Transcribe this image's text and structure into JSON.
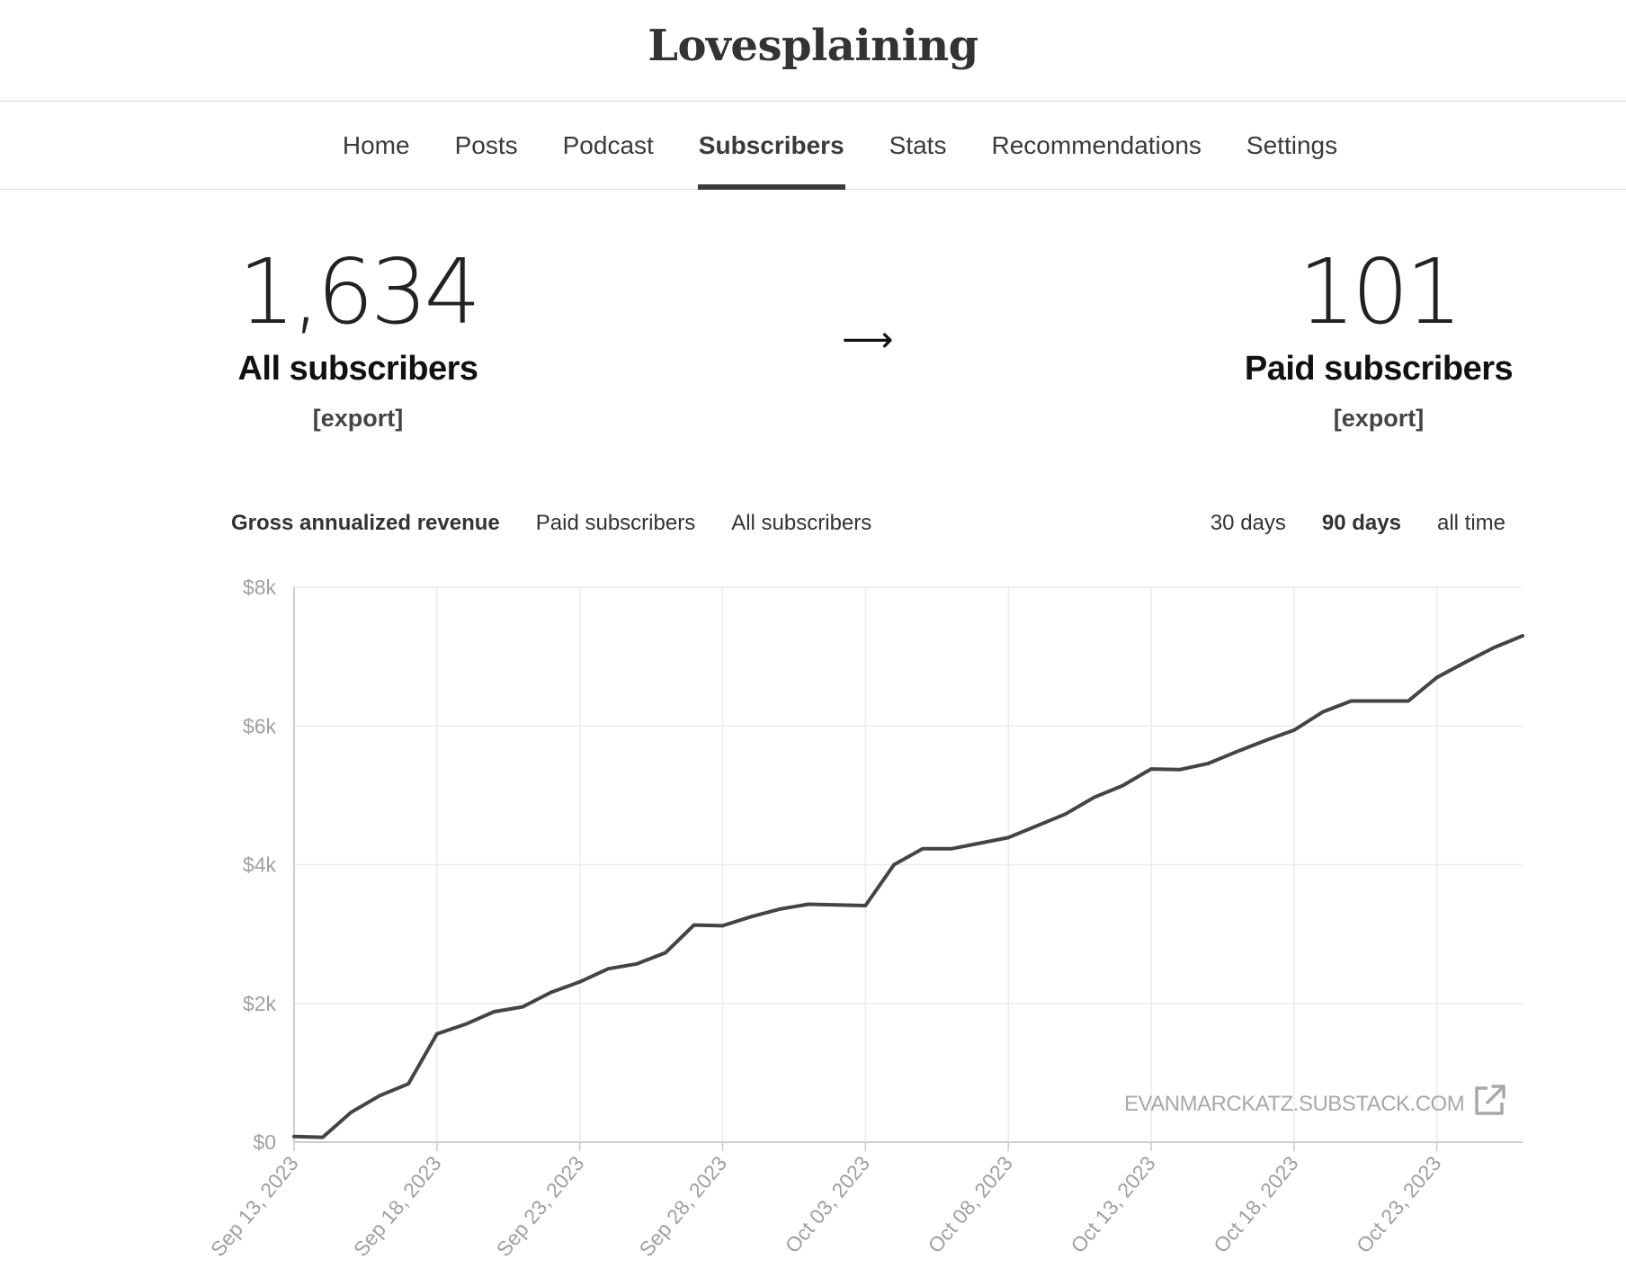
{
  "publication": {
    "title": "Lovesplaining"
  },
  "nav": {
    "tabs": [
      {
        "label": "Home",
        "active": false
      },
      {
        "label": "Posts",
        "active": false
      },
      {
        "label": "Podcast",
        "active": false
      },
      {
        "label": "Subscribers",
        "active": true
      },
      {
        "label": "Stats",
        "active": false
      },
      {
        "label": "Recommendations",
        "active": false
      },
      {
        "label": "Settings",
        "active": false
      }
    ]
  },
  "summary": {
    "all": {
      "count": "1,634",
      "label": "All subscribers",
      "export": "[export]"
    },
    "arrow": "⟶",
    "paid": {
      "count": "101",
      "label": "Paid subscribers",
      "export": "[export]"
    }
  },
  "chart_tabs": [
    {
      "label": "Gross annualized revenue",
      "active": true
    },
    {
      "label": "Paid subscribers",
      "active": false
    },
    {
      "label": "All subscribers",
      "active": false
    }
  ],
  "range_tabs": [
    {
      "label": "30 days",
      "active": false
    },
    {
      "label": "90 days",
      "active": true
    },
    {
      "label": "all time",
      "active": false
    }
  ],
  "watermark": {
    "text": "EVANMARCKATZ.SUBSTACK.COM",
    "icon": "external-link-icon"
  },
  "colors": {
    "line": "#444444",
    "grid": "#ebebeb",
    "axis_text": "#a0a0a0"
  },
  "chart_data": {
    "type": "line",
    "title": "",
    "xlabel": "",
    "ylabel": "",
    "ylim": [
      0,
      8000
    ],
    "yticks": [
      {
        "value": 0,
        "label": "$0"
      },
      {
        "value": 2000,
        "label": "$2k"
      },
      {
        "value": 4000,
        "label": "$4k"
      },
      {
        "value": 6000,
        "label": "$6k"
      },
      {
        "value": 8000,
        "label": "$8k"
      }
    ],
    "xticks": [
      "Sep 13, 2023",
      "Sep 18, 2023",
      "Sep 23, 2023",
      "Sep 28, 2023",
      "Oct 03, 2023",
      "Oct 08, 2023",
      "Oct 13, 2023",
      "Oct 18, 2023",
      "Oct 23, 2023"
    ],
    "x": [
      "2023-09-13",
      "2023-09-14",
      "2023-09-15",
      "2023-09-16",
      "2023-09-17",
      "2023-09-18",
      "2023-09-19",
      "2023-09-20",
      "2023-09-21",
      "2023-09-22",
      "2023-09-23",
      "2023-09-24",
      "2023-09-25",
      "2023-09-26",
      "2023-09-27",
      "2023-09-28",
      "2023-09-29",
      "2023-09-30",
      "2023-10-01",
      "2023-10-02",
      "2023-10-03",
      "2023-10-04",
      "2023-10-05",
      "2023-10-06",
      "2023-10-07",
      "2023-10-08",
      "2023-10-09",
      "2023-10-10",
      "2023-10-11",
      "2023-10-12",
      "2023-10-13",
      "2023-10-14",
      "2023-10-15",
      "2023-10-16",
      "2023-10-17",
      "2023-10-18",
      "2023-10-19",
      "2023-10-20",
      "2023-10-21",
      "2023-10-22",
      "2023-10-23",
      "2023-10-24",
      "2023-10-25",
      "2023-10-26"
    ],
    "series": [
      {
        "values": [
          80,
          70,
          430,
          670,
          840,
          1560,
          1700,
          1880,
          1950,
          2160,
          2310,
          2500,
          2570,
          2730,
          3130,
          3120,
          3250,
          3360,
          3430,
          3420,
          3410,
          4000,
          4230,
          4230,
          4310,
          4390,
          4560,
          4730,
          4970,
          5140,
          5380,
          5370,
          5460,
          5630,
          5790,
          5940,
          6200,
          6360,
          6360,
          6360,
          6700,
          6920,
          7130,
          7300
        ]
      }
    ],
    "grid": true,
    "legend": "none"
  }
}
